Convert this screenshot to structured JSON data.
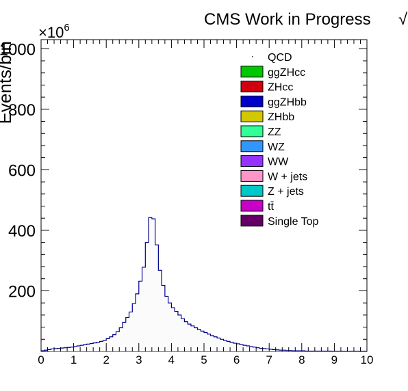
{
  "chart_data": {
    "type": "bar",
    "title": "CMS Work in Progress",
    "title_suffix": "√",
    "ylabel": "Events/bin",
    "xlabel": "",
    "y_multiplier": "×10",
    "y_multiplier_exp": "6",
    "xlim": [
      0,
      10
    ],
    "ylim": [
      0,
      1030
    ],
    "x_ticks": [
      "0",
      "1",
      "2",
      "3",
      "4",
      "5",
      "6",
      "7",
      "8",
      "9",
      "10"
    ],
    "y_ticks": [
      "200",
      "400",
      "600",
      "800",
      "1000"
    ],
    "grid": false,
    "legend_position": "top-right",
    "legend": [
      {
        "label": "QCD",
        "color": "#ffffff"
      },
      {
        "label": "ggZHcc",
        "color": "#00c800"
      },
      {
        "label": "ZHcc",
        "color": "#d2000f"
      },
      {
        "label": "ggZHbb",
        "color": "#0000c8"
      },
      {
        "label": "ZHbb",
        "color": "#d2c800"
      },
      {
        "label": "ZZ",
        "color": "#32ff96"
      },
      {
        "label": "WZ",
        "color": "#3296ff"
      },
      {
        "label": "WW",
        "color": "#9632ff"
      },
      {
        "label": "W + jets",
        "color": "#ff96c8"
      },
      {
        "label": "Z + jets",
        "color": "#00c8c8"
      },
      {
        "label": "tt̄",
        "color": "#c800c8"
      },
      {
        "label": "Single Top",
        "color": "#640064"
      }
    ],
    "bin_width": 0.1,
    "series": [
      {
        "name": "QCD",
        "values": [
          2,
          4,
          6,
          8,
          9,
          10,
          11,
          12,
          13,
          14,
          16,
          18,
          20,
          22,
          24,
          26,
          28,
          30,
          33,
          36,
          42,
          48,
          55,
          65,
          78,
          96,
          112,
          130,
          158,
          190,
          232,
          278,
          360,
          442,
          438,
          352,
          268,
          218,
          182,
          160,
          144,
          132,
          120,
          108,
          98,
          90,
          84,
          78,
          72,
          67,
          62,
          57,
          52,
          48,
          44,
          40,
          36,
          33,
          30,
          27,
          25,
          22,
          20,
          18,
          16,
          14,
          12,
          10,
          9,
          8,
          7,
          6,
          5,
          4,
          4,
          3,
          3,
          2,
          2,
          2,
          2,
          1,
          1,
          1,
          1,
          1,
          1,
          1,
          1,
          0,
          0,
          0,
          0,
          0,
          0,
          0,
          0,
          0,
          0,
          0
        ]
      }
    ]
  }
}
